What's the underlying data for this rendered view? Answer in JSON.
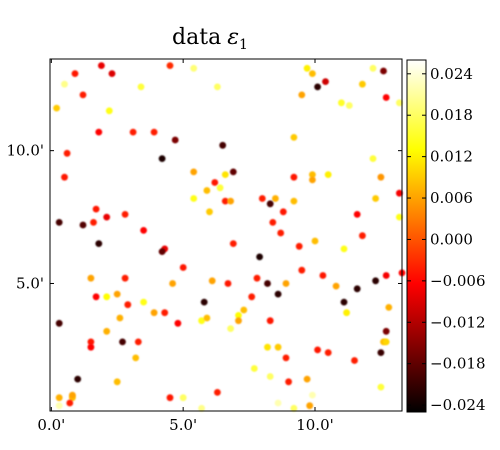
{
  "chart_data": {
    "type": "scatter",
    "title": "data",
    "title_symbol": "ε",
    "title_subscript": "1",
    "xlabel": "",
    "ylabel": "",
    "xlim": [
      -0.05,
      13.3
    ],
    "ylim": [
      0.2,
      13.45
    ],
    "x_ticks": [
      0,
      5,
      10
    ],
    "x_tick_labels": [
      "0.0'",
      "5.0'",
      "10.0'"
    ],
    "y_ticks": [
      5,
      10
    ],
    "y_tick_labels": [
      "5.0'",
      "10.0'"
    ],
    "grid": false,
    "colormap": "hot",
    "colorbar": {
      "vmin": -0.025,
      "vmax": 0.026,
      "ticks": [
        -0.024,
        -0.018,
        -0.012,
        -0.006,
        0.0,
        0.006,
        0.012,
        0.018,
        0.024
      ],
      "tick_labels": [
        "−0.024",
        "−0.018",
        "−0.012",
        "−0.006",
        "0.000",
        "0.006",
        "0.012",
        "0.018",
        "0.024"
      ]
    },
    "points": [
      [
        0.2,
        11.6,
        0.009
      ],
      [
        0.5,
        12.5,
        0.02
      ],
      [
        0.9,
        12.9,
        -0.005
      ],
      [
        1.2,
        12.1,
        -0.004
      ],
      [
        1.9,
        13.2,
        -0.008
      ],
      [
        2.3,
        12.9,
        -0.009
      ],
      [
        2.2,
        11.5,
        0.014
      ],
      [
        3.4,
        12.4,
        0.016
      ],
      [
        4.5,
        13.2,
        -0.003
      ],
      [
        5.4,
        13.1,
        0.019
      ],
      [
        6.3,
        12.4,
        0.018
      ],
      [
        9.7,
        13.1,
        0.012
      ],
      [
        9.9,
        12.9,
        0.008
      ],
      [
        11.8,
        12.5,
        0.009
      ],
      [
        12.2,
        13.1,
        0.018
      ],
      [
        12.6,
        13.0,
        -0.016
      ],
      [
        13.2,
        11.8,
        0.018
      ],
      [
        10.1,
        12.4,
        -0.022
      ],
      [
        10.4,
        12.6,
        -0.01
      ],
      [
        11.0,
        11.8,
        0.015
      ],
      [
        11.3,
        11.7,
        0.018
      ],
      [
        12.7,
        12.0,
        -0.006
      ],
      [
        9.5,
        12.1,
        0.006
      ],
      [
        0.6,
        9.9,
        -0.004
      ],
      [
        0.5,
        9.0,
        -0.005
      ],
      [
        1.8,
        10.7,
        -0.006
      ],
      [
        3.1,
        10.7,
        -0.004
      ],
      [
        3.9,
        10.7,
        -0.004
      ],
      [
        4.2,
        9.7,
        -0.023
      ],
      [
        4.7,
        10.4,
        -0.016
      ],
      [
        5.4,
        9.2,
        0.006
      ],
      [
        6.2,
        8.8,
        -0.005
      ],
      [
        6.5,
        10.2,
        -0.02
      ],
      [
        6.6,
        9.1,
        0.011
      ],
      [
        6.9,
        9.2,
        -0.018
      ],
      [
        5.9,
        8.5,
        0.008
      ],
      [
        6.4,
        8.6,
        0.016
      ],
      [
        5.4,
        8.2,
        0.014
      ],
      [
        6.0,
        7.7,
        0.009
      ],
      [
        6.6,
        8.1,
        -0.004
      ],
      [
        6.8,
        8.1,
        0.006
      ],
      [
        8.0,
        8.2,
        -0.004
      ],
      [
        8.5,
        8.2,
        0.007
      ],
      [
        8.3,
        8.0,
        -0.02
      ],
      [
        9.2,
        10.5,
        0.009
      ],
      [
        9.2,
        9.0,
        -0.005
      ],
      [
        9.9,
        9.1,
        0.008
      ],
      [
        10.5,
        9.1,
        0.012
      ],
      [
        8.8,
        7.7,
        -0.005
      ],
      [
        9.2,
        8.1,
        0.008
      ],
      [
        9.9,
        8.9,
        0.006
      ],
      [
        12.2,
        9.7,
        0.016
      ],
      [
        12.3,
        8.2,
        0.009
      ],
      [
        12.5,
        9.0,
        0.005
      ],
      [
        13.2,
        8.4,
        -0.007
      ],
      [
        13.2,
        7.5,
        0.014
      ],
      [
        11.6,
        7.6,
        -0.006
      ],
      [
        11.1,
        6.3,
        0.014
      ],
      [
        0.3,
        7.3,
        -0.02
      ],
      [
        1.2,
        7.2,
        -0.019
      ],
      [
        1.7,
        7.8,
        -0.005
      ],
      [
        1.6,
        7.3,
        -0.004
      ],
      [
        2.1,
        7.5,
        -0.008
      ],
      [
        2.8,
        7.6,
        -0.004
      ],
      [
        1.8,
        6.5,
        -0.022
      ],
      [
        3.5,
        7.0,
        -0.006
      ],
      [
        4.3,
        6.3,
        -0.008
      ],
      [
        4.2,
        6.2,
        -0.018
      ],
      [
        6.9,
        6.5,
        -0.004
      ],
      [
        7.9,
        6.0,
        -0.023
      ],
      [
        8.7,
        6.9,
        -0.004
      ],
      [
        8.4,
        7.3,
        -0.004
      ],
      [
        9.4,
        6.4,
        -0.004
      ],
      [
        10.0,
        6.6,
        0.008
      ],
      [
        11.8,
        6.8,
        -0.004
      ],
      [
        1.5,
        5.2,
        0.006
      ],
      [
        1.7,
        4.5,
        -0.006
      ],
      [
        2.1,
        4.5,
        0.013
      ],
      [
        2.5,
        4.6,
        0.006
      ],
      [
        2.8,
        5.2,
        -0.004
      ],
      [
        3.5,
        4.3,
        0.014
      ],
      [
        4.6,
        5.0,
        0.006
      ],
      [
        5.0,
        5.6,
        -0.005
      ],
      [
        6.1,
        5.1,
        0.006
      ],
      [
        5.8,
        4.3,
        -0.022
      ],
      [
        6.7,
        5.0,
        -0.005
      ],
      [
        7.8,
        5.2,
        -0.004
      ],
      [
        7.6,
        4.5,
        -0.004
      ],
      [
        8.2,
        5.0,
        -0.02
      ],
      [
        8.6,
        4.6,
        -0.022
      ],
      [
        8.9,
        5.0,
        0.006
      ],
      [
        9.5,
        5.5,
        -0.004
      ],
      [
        10.3,
        5.3,
        -0.005
      ],
      [
        10.8,
        4.9,
        0.006
      ],
      [
        11.6,
        4.8,
        -0.022
      ],
      [
        12.3,
        5.1,
        -0.022
      ],
      [
        12.7,
        5.3,
        -0.007
      ],
      [
        13.3,
        5.4,
        -0.006
      ],
      [
        11.1,
        4.3,
        -0.022
      ],
      [
        11.2,
        3.9,
        0.012
      ],
      [
        12.8,
        4.1,
        0.007
      ],
      [
        0.3,
        3.5,
        -0.02
      ],
      [
        1.5,
        2.8,
        -0.005
      ],
      [
        1.5,
        2.6,
        -0.006
      ],
      [
        2.1,
        3.2,
        0.007
      ],
      [
        2.6,
        3.7,
        0.007
      ],
      [
        2.9,
        4.2,
        -0.004
      ],
      [
        2.7,
        2.8,
        -0.02
      ],
      [
        3.3,
        2.8,
        -0.004
      ],
      [
        3.9,
        3.9,
        0.006
      ],
      [
        4.3,
        3.9,
        -0.004
      ],
      [
        4.8,
        3.5,
        -0.006
      ],
      [
        5.7,
        3.6,
        0.014
      ],
      [
        5.9,
        3.7,
        0.008
      ],
      [
        6.8,
        3.3,
        0.018
      ],
      [
        7.1,
        3.8,
        0.013
      ],
      [
        7.3,
        4.0,
        0.008
      ],
      [
        7.1,
        3.6,
        0.006
      ],
      [
        8.3,
        3.6,
        -0.005
      ],
      [
        8.2,
        2.6,
        0.011
      ],
      [
        8.6,
        2.6,
        0.009
      ],
      [
        8.9,
        2.2,
        -0.004
      ],
      [
        10.1,
        2.5,
        -0.005
      ],
      [
        10.5,
        2.4,
        -0.004
      ],
      [
        11.5,
        2.1,
        -0.004
      ],
      [
        12.7,
        3.2,
        -0.016
      ],
      [
        12.6,
        2.8,
        0.008
      ],
      [
        12.7,
        2.8,
        0.01
      ],
      [
        12.5,
        2.4,
        -0.021
      ],
      [
        3.2,
        2.2,
        0.008
      ],
      [
        2.5,
        1.3,
        0.008
      ],
      [
        1.0,
        1.4,
        -0.022
      ],
      [
        0.3,
        0.7,
        0.007
      ],
      [
        0.8,
        0.7,
        0.008
      ],
      [
        0.7,
        0.5,
        -0.004
      ],
      [
        0.8,
        0.8,
        0.006
      ],
      [
        4.5,
        0.7,
        -0.005
      ],
      [
        5.0,
        0.7,
        0.018
      ],
      [
        6.3,
        0.9,
        -0.004
      ],
      [
        7.7,
        1.8,
        0.016
      ],
      [
        8.3,
        1.5,
        0.018
      ],
      [
        9.0,
        1.3,
        -0.004
      ],
      [
        9.7,
        1.4,
        0.006
      ],
      [
        12.5,
        1.1,
        0.016
      ],
      [
        9.9,
        0.8,
        0.022
      ],
      [
        9.8,
        0.4,
        0.006
      ],
      [
        0.3,
        0.4,
        0.022
      ],
      [
        5.7,
        0.3,
        0.02
      ],
      [
        9.2,
        0.3,
        0.018
      ],
      [
        8.6,
        0.5,
        0.022
      ]
    ]
  }
}
